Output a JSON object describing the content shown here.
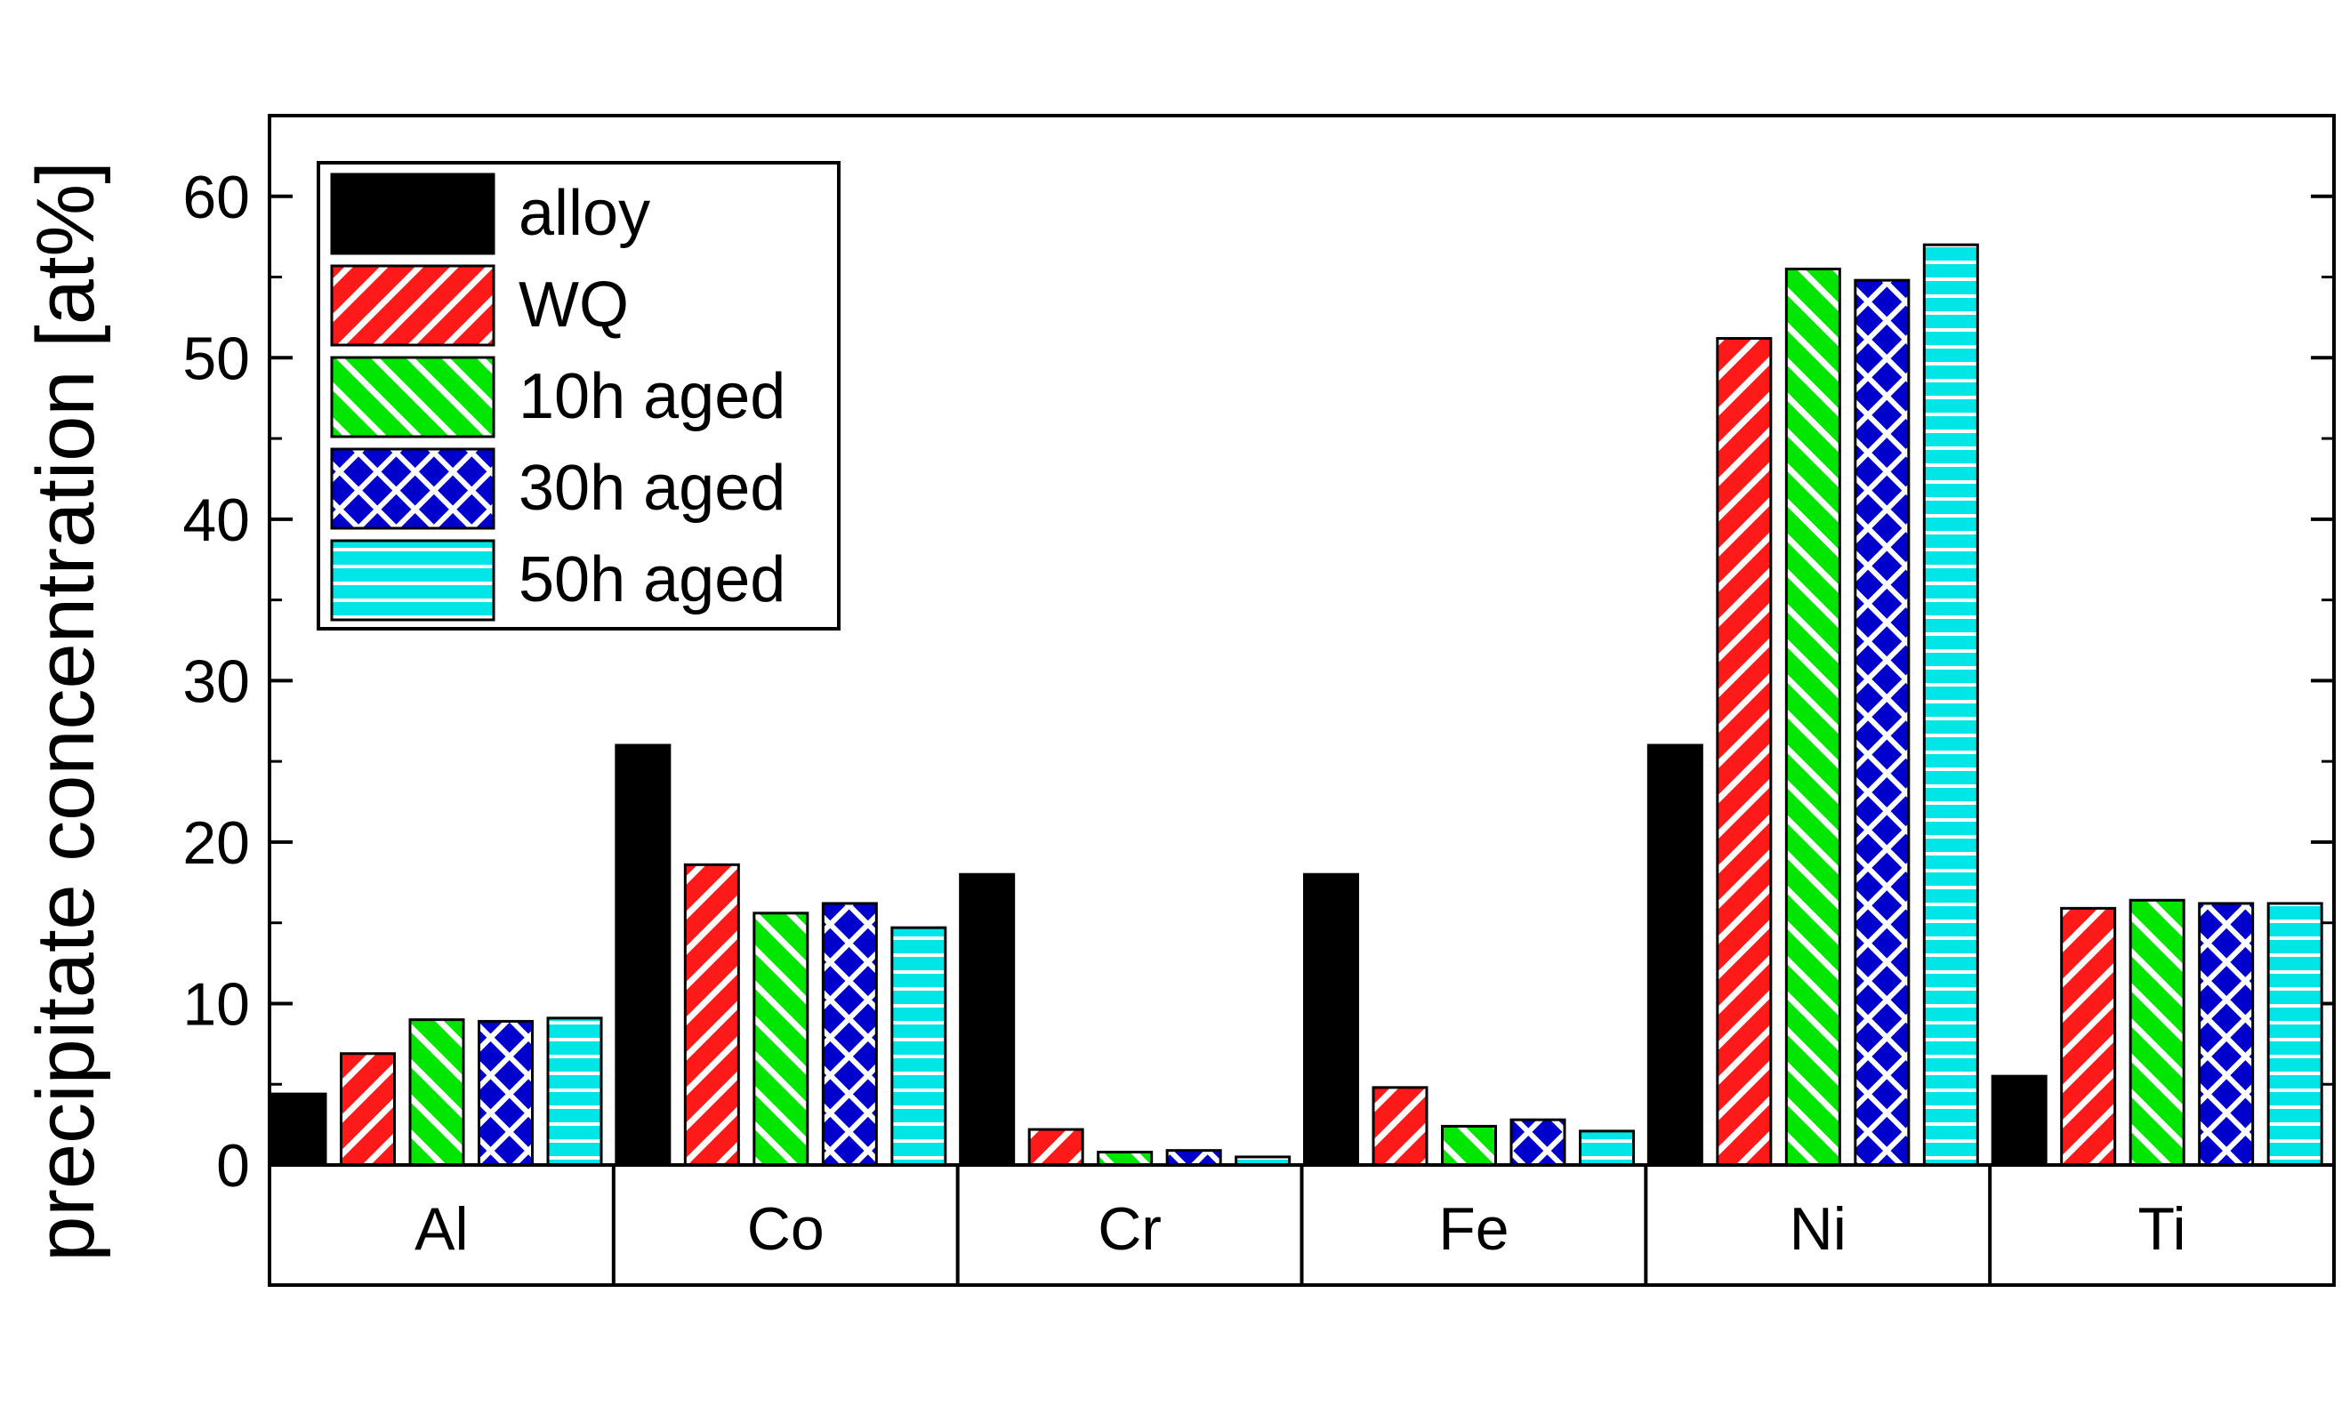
{
  "chart_data": {
    "type": "bar",
    "title": "",
    "xlabel": "",
    "ylabel": "precipitate concentration [at%]",
    "ylim": [
      0,
      65
    ],
    "yticks": [
      0,
      10,
      20,
      30,
      40,
      50,
      60
    ],
    "categories": [
      "Al",
      "Co",
      "Cr",
      "Fe",
      "Ni",
      "Ti"
    ],
    "legend_position": "top-left",
    "series": [
      {
        "name": "alloy",
        "pattern": "solid",
        "color": "#000000",
        "values": [
          4.4,
          26.0,
          18.0,
          18.0,
          26.0,
          5.5
        ]
      },
      {
        "name": "WQ",
        "pattern": "diagonal-up",
        "color": "#ff1a1a",
        "values": [
          6.9,
          18.6,
          2.2,
          4.8,
          51.2,
          15.9
        ]
      },
      {
        "name": "10h aged",
        "pattern": "diagonal-down",
        "color": "#00e600",
        "values": [
          9.0,
          15.6,
          0.8,
          2.4,
          55.5,
          16.4
        ]
      },
      {
        "name": "30h aged",
        "pattern": "crosshatch",
        "color": "#0000cc",
        "values": [
          8.9,
          16.2,
          0.9,
          2.8,
          54.8,
          16.2
        ]
      },
      {
        "name": "50h aged",
        "pattern": "horizontal",
        "color": "#00e6e6",
        "values": [
          9.1,
          14.7,
          0.5,
          2.1,
          57.0,
          16.2
        ]
      }
    ]
  }
}
